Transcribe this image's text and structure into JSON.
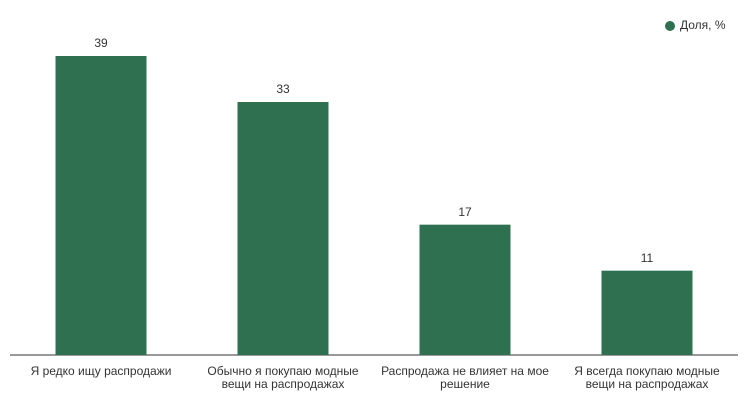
{
  "chart_data": {
    "type": "bar",
    "categories": [
      "Я редко ищу распродажи",
      "Обычно я покупаю модные вещи на распродажах",
      "Распродажа не влияет на мое решение",
      "Я всегда покупаю модные вещи на распродажах"
    ],
    "series": [
      {
        "name": "Доля, %",
        "color": "#2e7050",
        "values": [
          39,
          33,
          17,
          11
        ]
      }
    ],
    "legend": "top-right"
  }
}
